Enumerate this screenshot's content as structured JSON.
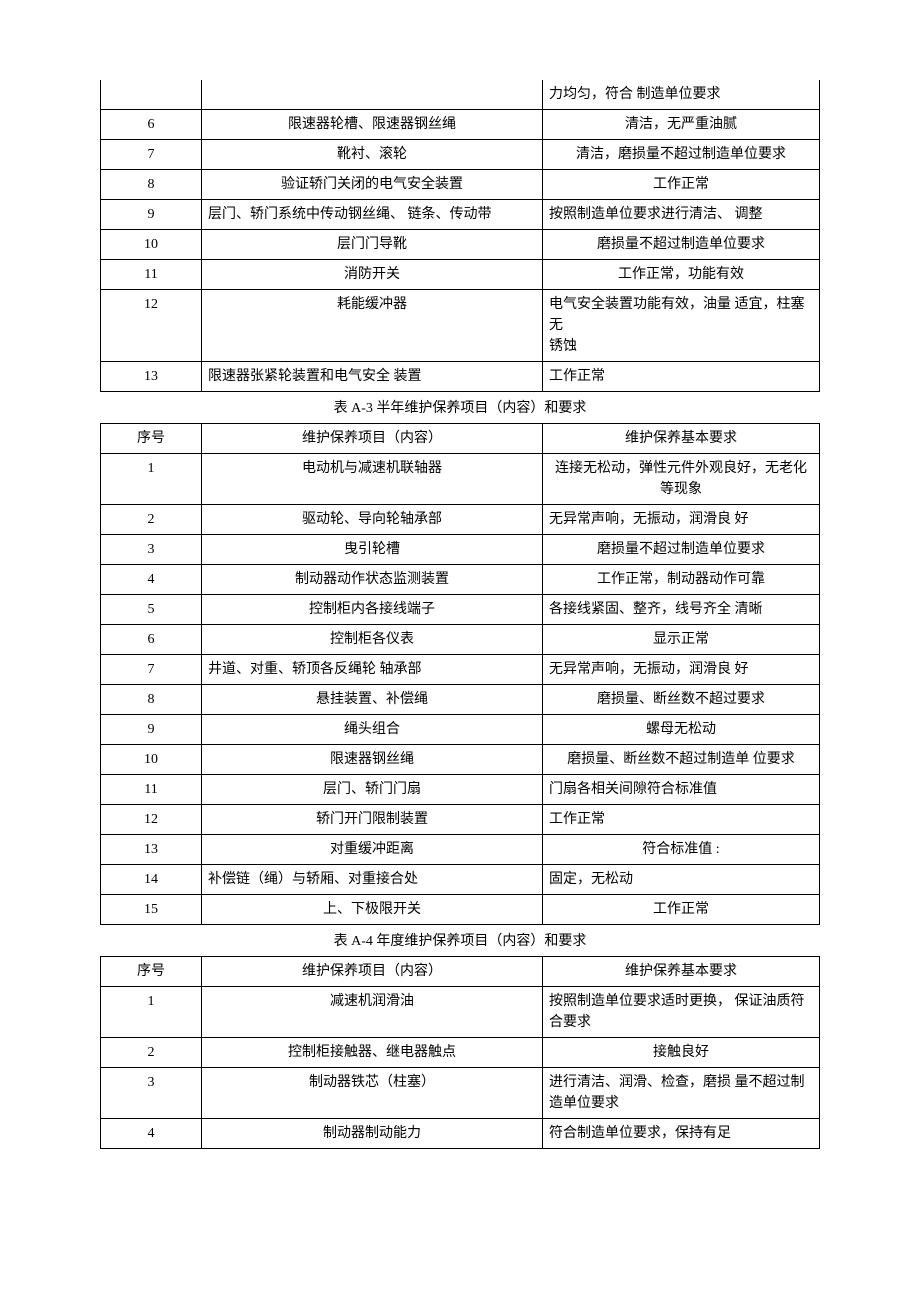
{
  "table1": {
    "rows": [
      {
        "seq": "",
        "item": "",
        "req": "力均匀，符合 制造单位要求",
        "itemAlign": "ctr",
        "reqAlign": "lft"
      },
      {
        "seq": "6",
        "item": "限速器轮槽、限速器钢丝绳",
        "req": "清洁，无严重油腻",
        "itemAlign": "ctr",
        "reqAlign": "ctr"
      },
      {
        "seq": "7",
        "item": "靴衬、滚轮",
        "req": "清洁，磨损量不超过制造单位要求",
        "itemAlign": "ctr",
        "reqAlign": "ctr"
      },
      {
        "seq": "8",
        "item": "验证轿门关闭的电气安全装置",
        "req": "工作正常",
        "itemAlign": "ctr",
        "reqAlign": "ctr"
      },
      {
        "seq": "9",
        "item": "层门、轿门系统中传动钢丝绳、 链条、传动带",
        "req": "按照制造单位要求进行清洁、 调整",
        "itemAlign": "lft",
        "reqAlign": "lft"
      },
      {
        "seq": "10",
        "item": "层门门导靴",
        "req": "磨损量不超过制造单位要求",
        "itemAlign": "ctr",
        "reqAlign": "ctr"
      },
      {
        "seq": "11",
        "item": "消防开关",
        "req": "工作正常，功能有效",
        "itemAlign": "ctr",
        "reqAlign": "ctr"
      },
      {
        "seq": "12",
        "item": "耗能缓冲器",
        "req": "电气安全装置功能有效，油量 适宜，柱塞无\n锈蚀",
        "itemAlign": "ctr",
        "reqAlign": "lft"
      },
      {
        "seq": "13",
        "item": "限速器张紧轮装置和电气安全 装置",
        "req": "工作正常",
        "itemAlign": "lft",
        "reqAlign": "lft"
      }
    ]
  },
  "table2": {
    "caption": "表 A-3 半年维护保养项目（内容）和要求",
    "header": {
      "seq": "序号",
      "item": "维护保养项目（内容）",
      "req": "维护保养基本要求"
    },
    "rows": [
      {
        "seq": "1",
        "item": "电动机与减速机联轴器",
        "req": "连接无松动，弹性元件外观良好，无老化等现象",
        "itemAlign": "ctr",
        "reqAlign": "ctr"
      },
      {
        "seq": "2",
        "item": "驱动轮、导向轮轴承部",
        "req": "无异常声响，无振动，润滑良 好",
        "itemAlign": "ctr",
        "reqAlign": "lft"
      },
      {
        "seq": "3",
        "item": "曳引轮槽",
        "req": "磨损量不超过制造单位要求",
        "itemAlign": "ctr",
        "reqAlign": "ctr"
      },
      {
        "seq": "4",
        "item": "制动器动作状态监测装置",
        "req": "工作正常，制动器动作可靠",
        "itemAlign": "ctr",
        "reqAlign": "ctr"
      },
      {
        "seq": "5",
        "item": "控制柜内各接线端子",
        "req": "各接线紧固、整齐，线号齐全 清晰",
        "itemAlign": "ctr",
        "reqAlign": "lft"
      },
      {
        "seq": "6",
        "item": "控制柜各仪表",
        "req": "显示正常",
        "itemAlign": "ctr",
        "reqAlign": "ctr"
      },
      {
        "seq": "7",
        "item": "井道、对重、轿顶各反绳轮 轴承部",
        "req": "无异常声响，无振动，润滑良 好",
        "itemAlign": "lft",
        "reqAlign": "lft"
      },
      {
        "seq": "8",
        "item": "悬挂装置、补偿绳",
        "req": "磨损量、断丝数不超过要求",
        "itemAlign": "ctr",
        "reqAlign": "ctr"
      },
      {
        "seq": "9",
        "item": "绳头组合",
        "req": "螺母无松动",
        "itemAlign": "ctr",
        "reqAlign": "ctr"
      },
      {
        "seq": "10",
        "item": "限速器钢丝绳",
        "req": "磨损量、断丝数不超过制造单 位要求",
        "itemAlign": "ctr",
        "reqAlign": "ctr"
      },
      {
        "seq": "11",
        "item": "层门、轿门门扇",
        "req": "门扇各相关间隙符合标准值",
        "itemAlign": "ctr",
        "reqAlign": "lft"
      },
      {
        "seq": "12",
        "item": "轿门开门限制装置",
        "req": "工作正常",
        "itemAlign": "ctr",
        "reqAlign": "lft"
      },
      {
        "seq": "13",
        "item": "对重缓冲距离",
        "req": "符合标准值            :",
        "itemAlign": "ctr",
        "reqAlign": "ctr"
      },
      {
        "seq": "14",
        "item": "补偿链（绳）与轿厢、对重接合处",
        "req": "固定，无松动",
        "itemAlign": "lft",
        "reqAlign": "lft"
      },
      {
        "seq": "15",
        "item": "上、下极限开关",
        "req": "工作正常",
        "itemAlign": "ctr",
        "reqAlign": "ctr"
      }
    ]
  },
  "table3": {
    "caption": "表 A-4 年度维护保养项目（内容）和要求",
    "header": {
      "seq": "序号",
      "item": "维护保养项目（内容）",
      "req": "维护保养基本要求"
    },
    "rows": [
      {
        "seq": "1",
        "item": "减速机润滑油",
        "req": "按照制造单位要求适时更换， 保证油质符合要求",
        "itemAlign": "ctr",
        "reqAlign": "lft"
      },
      {
        "seq": "2",
        "item": "控制柜接触器、继电器触点",
        "req": "接触良好",
        "itemAlign": "ctr",
        "reqAlign": "ctr"
      },
      {
        "seq": "3",
        "item": "制动器铁芯（柱塞）",
        "req": "进行清洁、润滑、检查，磨损 量不超过制造单位要求",
        "itemAlign": "ctr",
        "reqAlign": "lft"
      },
      {
        "seq": "4",
        "item": "制动器制动能力",
        "req": "符合制造单位要求，保持有足",
        "itemAlign": "ctr",
        "reqAlign": "lft"
      }
    ]
  }
}
